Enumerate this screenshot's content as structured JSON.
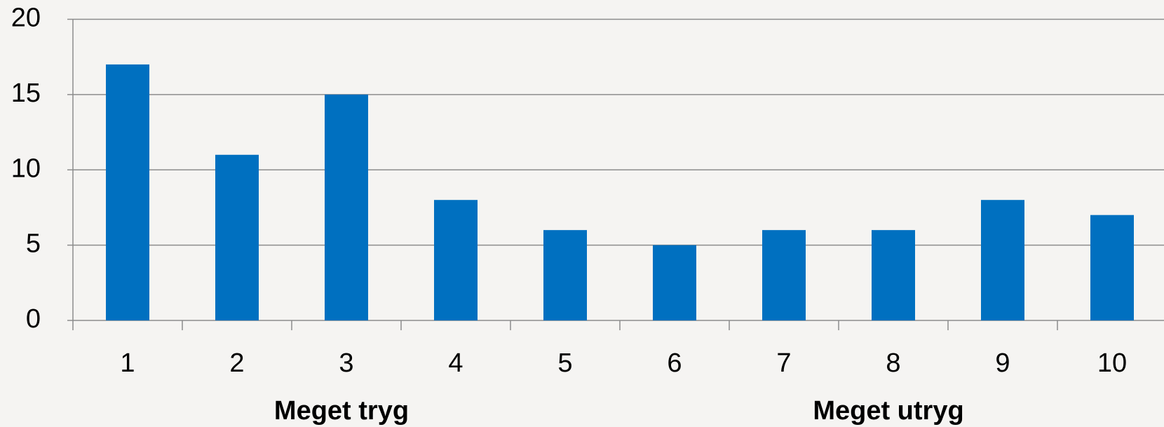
{
  "chart_data": {
    "type": "bar",
    "categories": [
      "1",
      "2",
      "3",
      "4",
      "5",
      "6",
      "7",
      "8",
      "9",
      "10"
    ],
    "values": [
      17,
      11,
      15,
      8,
      6,
      5,
      6,
      6,
      8,
      7
    ],
    "color": "#0070c0",
    "ylim": [
      0,
      20
    ],
    "yticks": [
      0,
      5,
      10,
      15,
      20
    ],
    "grid": true,
    "annotations": [
      "Meget tryg",
      "Meget utryg"
    ]
  }
}
